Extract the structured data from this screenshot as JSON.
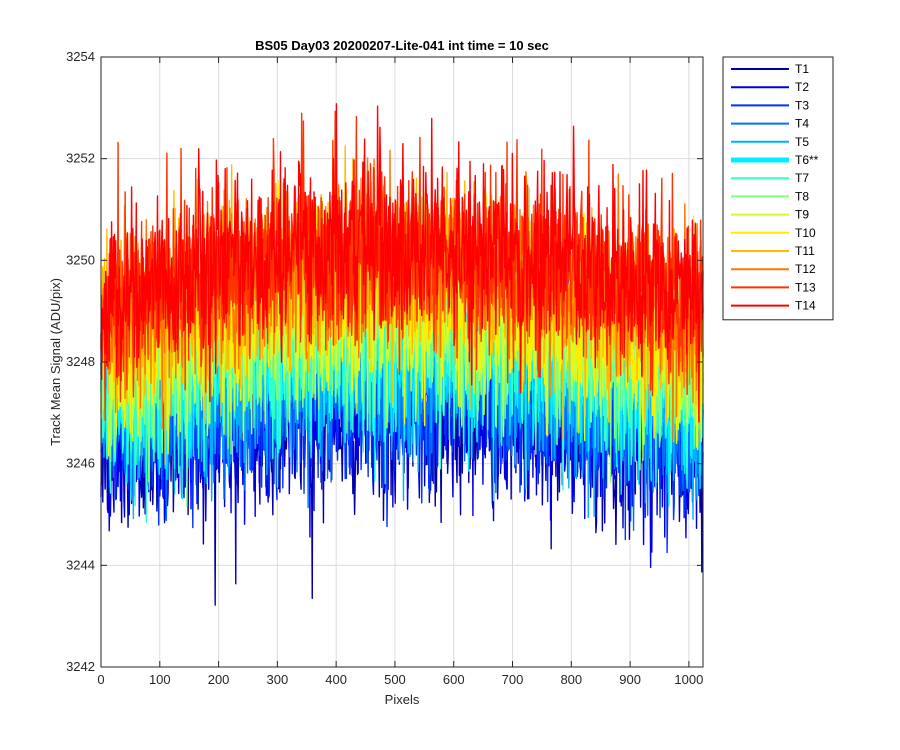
{
  "chart_data": {
    "type": "line",
    "title": "BS05 Day03 20200207-Lite-041 int time = 10 sec",
    "xlabel": "Pixels",
    "ylabel": "Track Mean Signal (ADU/pix)",
    "xlim": [
      0,
      1024
    ],
    "ylim": [
      3242,
      3254
    ],
    "xticks": [
      "0",
      "100",
      "200",
      "300",
      "400",
      "500",
      "600",
      "700",
      "800",
      "900",
      "1000"
    ],
    "xtick_values": [
      0,
      100,
      200,
      300,
      400,
      500,
      600,
      700,
      800,
      900,
      1000
    ],
    "yticks": [
      "3242",
      "3244",
      "3246",
      "3248",
      "3250",
      "3252",
      "3254"
    ],
    "ytick_values": [
      3242,
      3244,
      3246,
      3248,
      3250,
      3252,
      3254
    ],
    "grid": true,
    "legend_position": "outside-top-right",
    "points_per_series": 1024,
    "series": [
      {
        "name": "T1",
        "color": "#0000aa",
        "mean_edge": 3246.2,
        "mean_center": 3247.0,
        "noise": 0.85,
        "highlight": false
      },
      {
        "name": "T2",
        "color": "#0000e6",
        "mean_edge": 3246.4,
        "mean_center": 3247.2,
        "noise": 0.85,
        "highlight": false
      },
      {
        "name": "T3",
        "color": "#0033ff",
        "mean_edge": 3246.6,
        "mean_center": 3247.5,
        "noise": 0.85,
        "highlight": false
      },
      {
        "name": "T4",
        "color": "#0070ff",
        "mean_edge": 3246.8,
        "mean_center": 3247.8,
        "noise": 0.85,
        "highlight": false
      },
      {
        "name": "T5",
        "color": "#00b0ff",
        "mean_edge": 3247.0,
        "mean_center": 3248.0,
        "noise": 0.85,
        "highlight": false
      },
      {
        "name": "T6**",
        "color": "#00eeff",
        "mean_edge": 3247.2,
        "mean_center": 3248.3,
        "noise": 0.85,
        "highlight": true
      },
      {
        "name": "T7",
        "color": "#33ffcc",
        "mean_edge": 3247.5,
        "mean_center": 3248.6,
        "noise": 0.85,
        "highlight": false
      },
      {
        "name": "T8",
        "color": "#80ff80",
        "mean_edge": 3247.7,
        "mean_center": 3248.9,
        "noise": 0.85,
        "highlight": false
      },
      {
        "name": "T9",
        "color": "#ccff33",
        "mean_edge": 3248.0,
        "mean_center": 3249.2,
        "noise": 0.85,
        "highlight": false
      },
      {
        "name": "T10",
        "color": "#ffee00",
        "mean_edge": 3248.3,
        "mean_center": 3249.5,
        "noise": 0.85,
        "highlight": false
      },
      {
        "name": "T11",
        "color": "#ffbb00",
        "mean_edge": 3248.6,
        "mean_center": 3249.8,
        "noise": 0.85,
        "highlight": false
      },
      {
        "name": "T12",
        "color": "#ff7700",
        "mean_edge": 3248.8,
        "mean_center": 3250.0,
        "noise": 0.85,
        "highlight": false
      },
      {
        "name": "T13",
        "color": "#ff3300",
        "mean_edge": 3249.0,
        "mean_center": 3250.2,
        "noise": 0.85,
        "highlight": false
      },
      {
        "name": "T14",
        "color": "#ff0000",
        "mean_edge": 3249.2,
        "mean_center": 3250.4,
        "noise": 0.85,
        "highlight": false
      }
    ]
  }
}
